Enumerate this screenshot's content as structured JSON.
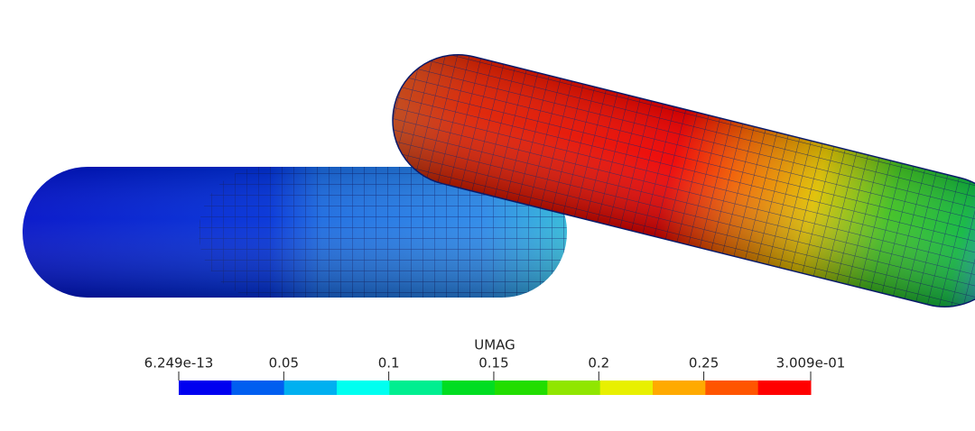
{
  "legend": {
    "title": "UMAG",
    "ticks": [
      {
        "value": 6.249e-13,
        "label": "6.249e-13"
      },
      0.05,
      0.1,
      0.15,
      0.2,
      0.25,
      {
        "value": 0.3009,
        "label": "3.009e-01"
      }
    ],
    "colors": [
      "#0000f0",
      "#005ef0",
      "#00b0f0",
      "#00fff0",
      "#00ee90",
      "#00dd22",
      "#22dd00",
      "#90e600",
      "#e8f000",
      "#ffaa00",
      "#ff5500",
      "#ff0000"
    ]
  }
}
